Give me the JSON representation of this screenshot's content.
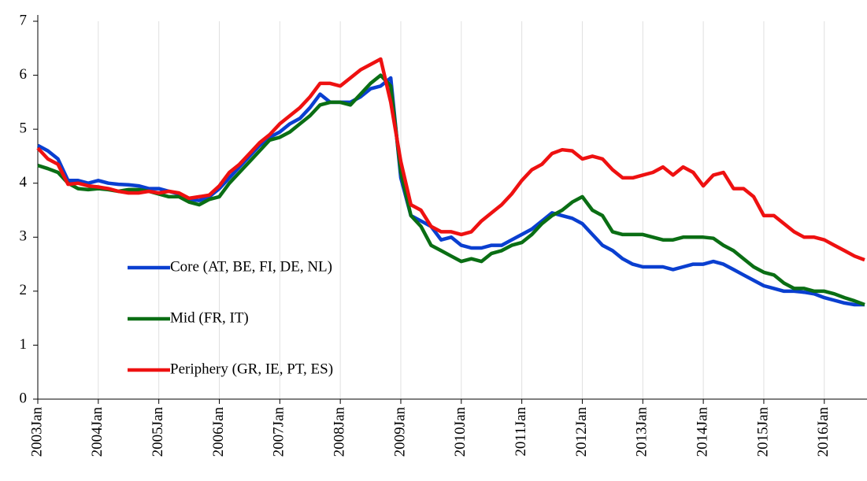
{
  "chart_data": {
    "type": "line",
    "categories": [
      "2003Jan",
      null,
      null,
      null,
      null,
      null,
      "2004Jan",
      null,
      null,
      null,
      null,
      null,
      "2005Jan",
      null,
      null,
      null,
      null,
      null,
      "2006Jan",
      null,
      null,
      null,
      null,
      null,
      "2007Jan",
      null,
      null,
      null,
      null,
      null,
      "2008Jan",
      null,
      null,
      null,
      null,
      null,
      "2009Jan",
      null,
      null,
      null,
      null,
      null,
      "2010Jan",
      null,
      null,
      null,
      null,
      null,
      "2011Jan",
      null,
      null,
      null,
      null,
      null,
      "2012Jan",
      null,
      null,
      null,
      null,
      null,
      "2013Jan",
      null,
      null,
      null,
      null,
      null,
      "2014Jan",
      null,
      null,
      null,
      null,
      null,
      "2015Jan",
      null,
      null,
      null,
      null,
      null,
      "2016Jan",
      null,
      null,
      null,
      null
    ],
    "series": [
      {
        "name": "Core (AT, BE, FI, DE, NL)",
        "color": "#0a3fd0",
        "values": [
          4.7,
          4.6,
          4.45,
          4.05,
          4.05,
          4.0,
          4.05,
          4.0,
          3.98,
          3.97,
          3.95,
          3.9,
          3.9,
          3.85,
          3.8,
          3.7,
          3.68,
          3.75,
          3.9,
          4.1,
          4.3,
          4.5,
          4.7,
          4.85,
          4.95,
          5.1,
          5.2,
          5.4,
          5.65,
          5.5,
          5.5,
          5.5,
          5.6,
          5.75,
          5.8,
          5.95,
          4.1,
          3.4,
          3.3,
          3.2,
          2.95,
          3.0,
          2.85,
          2.8,
          2.8,
          2.85,
          2.85,
          2.95,
          3.05,
          3.15,
          3.3,
          3.45,
          3.4,
          3.35,
          3.25,
          3.05,
          2.85,
          2.75,
          2.6,
          2.5,
          2.45,
          2.45,
          2.45,
          2.4,
          2.45,
          2.5,
          2.5,
          2.55,
          2.5,
          2.4,
          2.3,
          2.2,
          2.1,
          2.05,
          2.0,
          2.0,
          1.98,
          1.95,
          1.88,
          1.83,
          1.78,
          1.75,
          1.75
        ]
      },
      {
        "name": "Mid (FR, IT)",
        "color": "#0a6e14",
        "values": [
          4.33,
          4.27,
          4.2,
          4.0,
          3.9,
          3.88,
          3.9,
          3.88,
          3.85,
          3.88,
          3.88,
          3.85,
          3.8,
          3.75,
          3.75,
          3.65,
          3.6,
          3.7,
          3.75,
          4.0,
          4.2,
          4.4,
          4.6,
          4.8,
          4.85,
          4.95,
          5.1,
          5.25,
          5.45,
          5.5,
          5.5,
          5.45,
          5.65,
          5.85,
          6.0,
          5.8,
          4.2,
          3.4,
          3.2,
          2.85,
          2.75,
          2.65,
          2.55,
          2.6,
          2.55,
          2.7,
          2.75,
          2.85,
          2.9,
          3.05,
          3.25,
          3.4,
          3.5,
          3.65,
          3.75,
          3.5,
          3.4,
          3.1,
          3.05,
          3.05,
          3.05,
          3.0,
          2.95,
          2.95,
          3.0,
          3.0,
          3.0,
          2.98,
          2.85,
          2.75,
          2.6,
          2.45,
          2.35,
          2.3,
          2.15,
          2.05,
          2.05,
          2.0,
          2.0,
          1.95,
          1.88,
          1.82,
          1.75
        ]
      },
      {
        "name": "Periphery (GR, IE, PT, ES)",
        "color": "#ee1111",
        "values": [
          4.65,
          4.45,
          4.35,
          3.98,
          4.0,
          3.95,
          3.93,
          3.9,
          3.85,
          3.82,
          3.82,
          3.85,
          3.82,
          3.85,
          3.82,
          3.72,
          3.75,
          3.78,
          3.95,
          4.2,
          4.35,
          4.55,
          4.75,
          4.9,
          5.1,
          5.25,
          5.4,
          5.6,
          5.85,
          5.85,
          5.8,
          5.95,
          6.1,
          6.2,
          6.3,
          5.5,
          4.4,
          3.6,
          3.5,
          3.2,
          3.1,
          3.1,
          3.05,
          3.1,
          3.3,
          3.45,
          3.6,
          3.8,
          4.05,
          4.25,
          4.35,
          4.55,
          4.62,
          4.6,
          4.45,
          4.5,
          4.45,
          4.25,
          4.1,
          4.1,
          4.15,
          4.2,
          4.3,
          4.15,
          4.3,
          4.2,
          3.95,
          4.15,
          4.2,
          3.9,
          3.9,
          3.75,
          3.4,
          3.4,
          3.25,
          3.1,
          3.0,
          3.0,
          2.95,
          2.85,
          2.75,
          2.65,
          2.58
        ]
      }
    ],
    "ylim": [
      0,
      7
    ],
    "yticks": [
      0,
      1,
      2,
      3,
      4,
      5,
      6,
      7
    ],
    "grid": "x",
    "legend": "left"
  }
}
